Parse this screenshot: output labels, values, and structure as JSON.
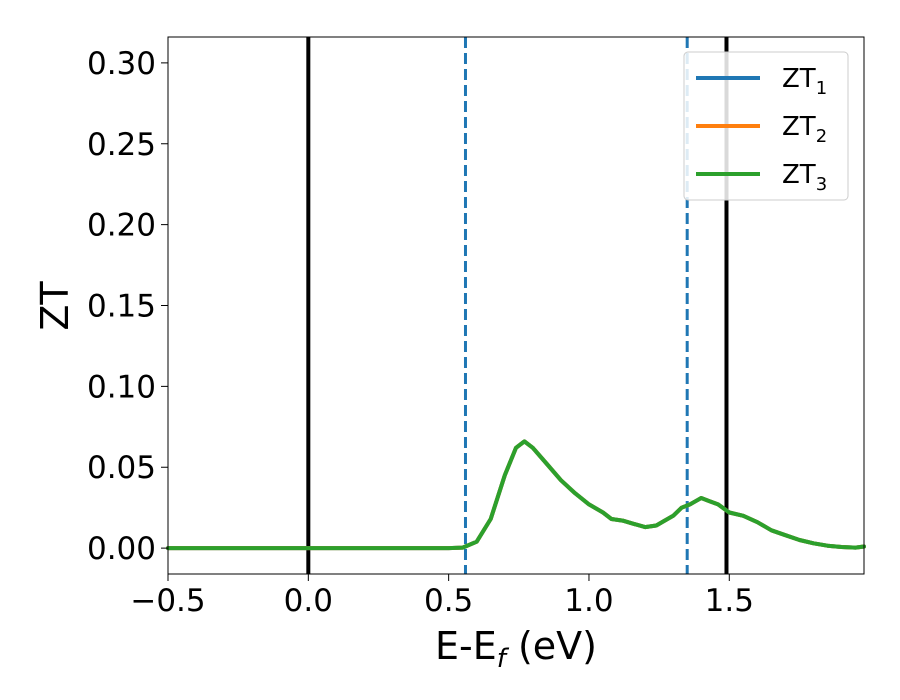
{
  "chart_data": {
    "type": "line",
    "title": "",
    "xlabel": {
      "main": "E-E",
      "sub": "f",
      "suffix": " (eV)"
    },
    "ylabel": "ZT",
    "xlim": [
      -0.5,
      1.98
    ],
    "ylim": [
      -0.016,
      0.316
    ],
    "xticks": [
      -0.5,
      0.0,
      0.5,
      1.0,
      1.5
    ],
    "xtick_labels": [
      "−0.5",
      "0.0",
      "0.5",
      "1.0",
      "1.5"
    ],
    "yticks": [
      0.0,
      0.05,
      0.1,
      0.15,
      0.2,
      0.25,
      0.3
    ],
    "ytick_labels": [
      "0.00",
      "0.05",
      "0.10",
      "0.15",
      "0.20",
      "0.25",
      "0.30"
    ],
    "grid": false,
    "legend_position": "top-right",
    "vlines": [
      {
        "x": 0.0,
        "style": "solid",
        "color": "#000000"
      },
      {
        "x": 1.49,
        "style": "solid",
        "color": "#000000"
      },
      {
        "x": 0.56,
        "style": "dashed",
        "color": "#1f77b4"
      },
      {
        "x": 1.35,
        "style": "dashed",
        "color": "#1f77b4"
      }
    ],
    "x": [
      -0.5,
      0.0,
      0.5,
      0.55,
      0.6,
      0.65,
      0.7,
      0.74,
      0.77,
      0.8,
      0.85,
      0.9,
      0.95,
      1.0,
      1.05,
      1.08,
      1.12,
      1.16,
      1.2,
      1.24,
      1.27,
      1.3,
      1.33,
      1.36,
      1.38,
      1.4,
      1.43,
      1.46,
      1.5,
      1.55,
      1.6,
      1.65,
      1.7,
      1.75,
      1.8,
      1.85,
      1.9,
      1.95,
      1.98
    ],
    "series": [
      {
        "name": "ZT",
        "sub": "1",
        "color": "#1f77b4",
        "values": [
          0.0,
          0.0,
          0.0,
          0.0003,
          0.004,
          0.018,
          0.045,
          0.062,
          0.066,
          0.062,
          0.052,
          0.042,
          0.034,
          0.027,
          0.022,
          0.018,
          0.017,
          0.015,
          0.013,
          0.014,
          0.017,
          0.02,
          0.025,
          0.027,
          0.029,
          0.031,
          0.029,
          0.027,
          0.022,
          0.02,
          0.016,
          0.011,
          0.008,
          0.005,
          0.003,
          0.0015,
          0.0007,
          0.0003,
          0.001
        ]
      },
      {
        "name": "ZT",
        "sub": "2",
        "color": "#ff7f0e",
        "values": [
          0.0,
          0.0,
          0.0,
          0.0003,
          0.004,
          0.018,
          0.045,
          0.062,
          0.066,
          0.062,
          0.052,
          0.042,
          0.034,
          0.027,
          0.022,
          0.018,
          0.017,
          0.015,
          0.013,
          0.014,
          0.017,
          0.02,
          0.025,
          0.027,
          0.029,
          0.031,
          0.029,
          0.027,
          0.022,
          0.02,
          0.016,
          0.011,
          0.008,
          0.005,
          0.003,
          0.0015,
          0.0007,
          0.0003,
          0.001
        ]
      },
      {
        "name": "ZT",
        "sub": "3",
        "color": "#2ca02c",
        "values": [
          0.0,
          0.0,
          0.0,
          0.0003,
          0.004,
          0.018,
          0.045,
          0.062,
          0.066,
          0.062,
          0.052,
          0.042,
          0.034,
          0.027,
          0.022,
          0.018,
          0.017,
          0.015,
          0.013,
          0.014,
          0.017,
          0.02,
          0.025,
          0.027,
          0.029,
          0.031,
          0.029,
          0.027,
          0.022,
          0.02,
          0.016,
          0.011,
          0.008,
          0.005,
          0.003,
          0.0015,
          0.0007,
          0.0003,
          0.001
        ]
      }
    ]
  }
}
